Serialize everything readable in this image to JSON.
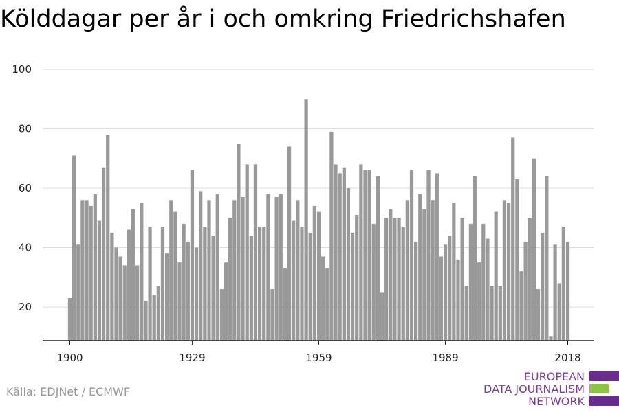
{
  "title": "Kölddagar per år i och omkring Friedrichshafen",
  "source": "Källa: EDJNet / ECMWF",
  "logo": {
    "line1": "EUROPEAN",
    "line2": "DATA JOURNALISM",
    "line3": "NETWORK",
    "colors": [
      "#6a2c8f",
      "#8cc63f",
      "#6a2c8f"
    ]
  },
  "chart_data": {
    "type": "bar",
    "title": "Kölddagar per år i och omkring Friedrichshafen",
    "x_start": 1900,
    "x_end": 2018,
    "xticks": [
      "1900",
      "1929",
      "1959",
      "1989",
      "2018"
    ],
    "yticks": [
      "20",
      "40",
      "60",
      "80",
      "100"
    ],
    "ylim": [
      9,
      100
    ],
    "grid": true,
    "bar_color": "#999999",
    "values": [
      23,
      71,
      41,
      56,
      56,
      54,
      58,
      49,
      67,
      78,
      45,
      40,
      37,
      34,
      46,
      53,
      34,
      55,
      22,
      47,
      24,
      27,
      47,
      38,
      56,
      52,
      35,
      48,
      42,
      66,
      40,
      59,
      47,
      56,
      44,
      58,
      26,
      35,
      50,
      56,
      75,
      57,
      68,
      44,
      68,
      47,
      47,
      58,
      26,
      57,
      58,
      33,
      74,
      49,
      56,
      47,
      90,
      45,
      54,
      52,
      37,
      33,
      79,
      68,
      65,
      67,
      60,
      45,
      51,
      68,
      66,
      66,
      48,
      64,
      25,
      50,
      53,
      50,
      50,
      47,
      56,
      66,
      42,
      58,
      53,
      66,
      56,
      65,
      37,
      41,
      44,
      55,
      36,
      50,
      27,
      48,
      64,
      35,
      48,
      43,
      27,
      52,
      27,
      56,
      55,
      77,
      63,
      32,
      42,
      50,
      70,
      26,
      45,
      64,
      10,
      41,
      28,
      47,
      42
    ]
  }
}
